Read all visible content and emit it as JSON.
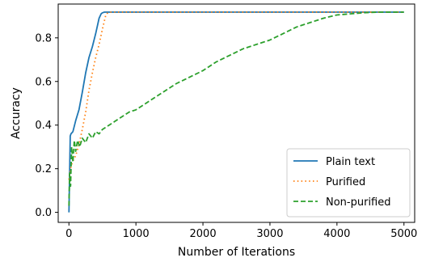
{
  "chart_data": {
    "type": "line",
    "xlabel": "Number of Iterations",
    "ylabel": "Accuracy",
    "xlim": [
      -160,
      5160
    ],
    "ylim": [
      -0.046,
      0.955
    ],
    "xticks": [
      0,
      1000,
      2000,
      3000,
      4000,
      5000
    ],
    "xtick_labels": [
      "0",
      "1000",
      "2000",
      "3000",
      "4000",
      "5000"
    ],
    "yticks": [
      0.0,
      0.2,
      0.4,
      0.6,
      0.8
    ],
    "ytick_labels": [
      "0.0",
      "0.2",
      "0.4",
      "0.6",
      "0.8"
    ],
    "grid": false,
    "legend_position": "lower-right",
    "series": [
      {
        "name": "Plain text",
        "color": "#1f77b4",
        "linestyle": "solid",
        "x": [
          0,
          20,
          30,
          60,
          100,
          150,
          200,
          250,
          300,
          350,
          400,
          450,
          480,
          500,
          530,
          600,
          1000,
          2000,
          3000,
          4000,
          5000
        ],
        "y": [
          0.0,
          0.35,
          0.36,
          0.37,
          0.42,
          0.47,
          0.55,
          0.64,
          0.71,
          0.76,
          0.82,
          0.89,
          0.91,
          0.915,
          0.918,
          0.918,
          0.918,
          0.918,
          0.918,
          0.918,
          0.918
        ]
      },
      {
        "name": "Purified",
        "color": "#ff7f0e",
        "linestyle": "dotted",
        "x": [
          0,
          25,
          50,
          100,
          150,
          200,
          250,
          300,
          350,
          400,
          450,
          500,
          550,
          580,
          600,
          1000,
          2000,
          3000,
          4000,
          5000
        ],
        "y": [
          0.15,
          0.2,
          0.23,
          0.26,
          0.31,
          0.38,
          0.46,
          0.56,
          0.64,
          0.71,
          0.77,
          0.84,
          0.905,
          0.915,
          0.918,
          0.918,
          0.918,
          0.918,
          0.918,
          0.918
        ]
      },
      {
        "name": "Non-purified",
        "color": "#2ca02c",
        "linestyle": "dashed",
        "x": [
          0,
          10,
          25,
          40,
          60,
          80,
          100,
          130,
          160,
          200,
          250,
          300,
          350,
          400,
          450,
          500,
          600,
          700,
          800,
          900,
          1000,
          1200,
          1400,
          1600,
          1800,
          2000,
          2200,
          2400,
          2600,
          2800,
          3000,
          3200,
          3400,
          3600,
          3800,
          4000,
          4200,
          4400,
          4600,
          4800,
          5000
        ],
        "y": [
          0.03,
          0.18,
          0.12,
          0.3,
          0.23,
          0.33,
          0.28,
          0.33,
          0.3,
          0.34,
          0.32,
          0.36,
          0.34,
          0.37,
          0.36,
          0.38,
          0.4,
          0.42,
          0.44,
          0.46,
          0.47,
          0.51,
          0.55,
          0.59,
          0.62,
          0.65,
          0.69,
          0.72,
          0.75,
          0.77,
          0.79,
          0.82,
          0.85,
          0.87,
          0.89,
          0.905,
          0.91,
          0.915,
          0.918,
          0.918,
          0.918
        ]
      }
    ]
  }
}
